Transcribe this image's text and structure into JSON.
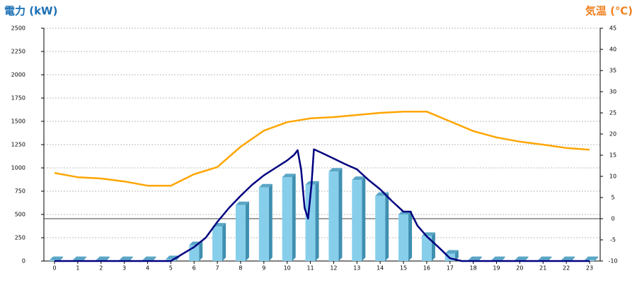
{
  "chart_data": {
    "type": "bar-line",
    "y_title": "電力 (kW)",
    "y2_title": "気温 (℃)",
    "categories": [
      "0",
      "1",
      "2",
      "3",
      "4",
      "5",
      "6",
      "7",
      "8",
      "9",
      "10",
      "11",
      "12",
      "13",
      "14",
      "15",
      "16",
      "17",
      "18",
      "19",
      "20",
      "21",
      "22",
      "23"
    ],
    "ylim": [
      0,
      2500
    ],
    "yticks": [
      0,
      250,
      500,
      750,
      1000,
      1250,
      1500,
      1750,
      2000,
      2250,
      2500
    ],
    "y2lim": [
      -10,
      45
    ],
    "y2ticks": [
      -10,
      -5,
      0,
      5,
      10,
      15,
      20,
      25,
      30,
      35,
      40,
      45
    ],
    "y2_reference": 0,
    "grid": true,
    "series": [
      {
        "type": "bar",
        "color": "#87ceeb",
        "values": [
          10,
          10,
          10,
          10,
          10,
          20,
          170,
          370,
          600,
          790,
          900,
          820,
          960,
          870,
          700,
          500,
          270,
          80,
          10,
          10,
          10,
          10,
          10,
          10
        ]
      },
      {
        "type": "line",
        "axis": "y2",
        "color": "#ffa500",
        "values": [
          10.8,
          9.8,
          9.5,
          8.8,
          7.8,
          7.8,
          10.5,
          12.2,
          17,
          20.8,
          22.8,
          23.7,
          24,
          24.5,
          25,
          25.3,
          25.3,
          23,
          20.7,
          19.2,
          18.2,
          17.5,
          16.7,
          16.3
        ]
      },
      {
        "type": "line",
        "color": "#000080",
        "x": [
          0,
          5,
          5.5,
          6,
          6.5,
          7,
          7.5,
          8,
          8.5,
          9,
          9.5,
          10,
          10.3,
          10.45,
          10.6,
          10.75,
          10.9,
          11.05,
          11.15,
          11.5,
          12,
          12.5,
          13,
          13.5,
          14,
          14.5,
          15,
          15.3,
          15.6,
          16,
          16.5,
          17,
          17.5,
          23
        ],
        "values": [
          0,
          0,
          75,
          150,
          250,
          420,
          570,
          700,
          820,
          920,
          1000,
          1080,
          1140,
          1190,
          985,
          570,
          455,
          830,
          1200,
          1160,
          1100,
          1040,
          985,
          870,
          770,
          645,
          530,
          530,
          380,
          265,
          150,
          30,
          0,
          0
        ]
      }
    ]
  }
}
